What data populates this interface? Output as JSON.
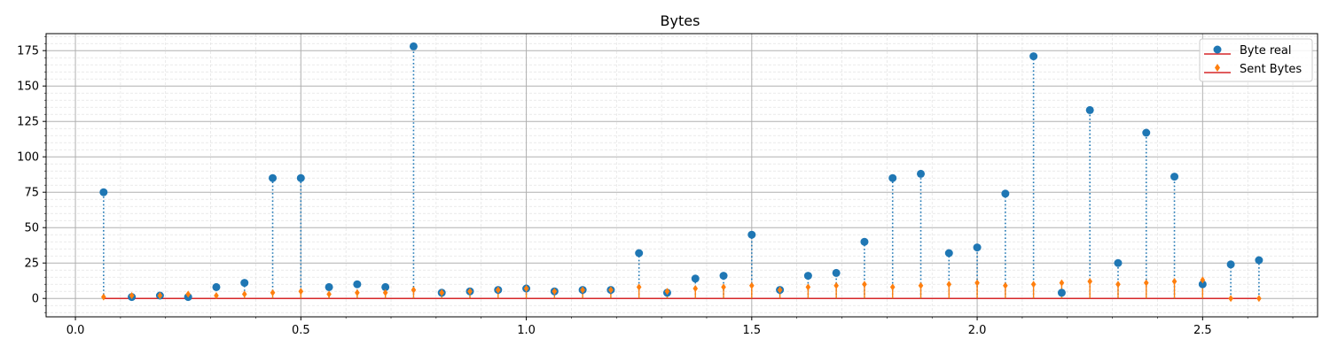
{
  "chart_data": {
    "type": "stem",
    "title": "Bytes",
    "xlabel": "",
    "ylabel": "",
    "xlim": [
      -0.065,
      2.755
    ],
    "ylim": [
      -13,
      187
    ],
    "xticks": [
      0.0,
      0.5,
      1.0,
      1.5,
      2.0,
      2.5
    ],
    "xtick_labels": [
      "0.0",
      "0.5",
      "1.0",
      "1.5",
      "2.0",
      "2.5"
    ],
    "yticks": [
      0,
      25,
      50,
      75,
      100,
      125,
      150,
      175
    ],
    "ytick_labels": [
      "0",
      "25",
      "50",
      "75",
      "100",
      "125",
      "150",
      "175"
    ],
    "grid": {
      "major": true,
      "minor": true
    },
    "legend_position": "top-right",
    "baseline_color": "#d62728",
    "x": [
      0.0625,
      0.125,
      0.1875,
      0.25,
      0.3125,
      0.375,
      0.4375,
      0.5,
      0.5625,
      0.625,
      0.6875,
      0.75,
      0.8125,
      0.875,
      0.9375,
      1.0,
      1.0625,
      1.125,
      1.1875,
      1.25,
      1.3125,
      1.375,
      1.4375,
      1.5,
      1.5625,
      1.625,
      1.6875,
      1.75,
      1.8125,
      1.875,
      1.9375,
      2.0,
      2.0625,
      2.125,
      2.1875,
      2.25,
      2.3125,
      2.375,
      2.4375,
      2.5,
      2.5625,
      2.625
    ],
    "series": [
      {
        "name": "Byte real",
        "color": "#1f77b4",
        "marker": "circle",
        "values": [
          75,
          1,
          2,
          1,
          8,
          11,
          85,
          85,
          8,
          10,
          8,
          178,
          4,
          5,
          6,
          7,
          5,
          6,
          6,
          32,
          4,
          14,
          16,
          45,
          6,
          16,
          18,
          40,
          85,
          88,
          32,
          36,
          74,
          171,
          4,
          133,
          25,
          117,
          86,
          10,
          24,
          27
        ]
      },
      {
        "name": "Sent Bytes",
        "color": "#ff7f0e",
        "marker": "diamond",
        "values": [
          1,
          2,
          2,
          3,
          2,
          3,
          4,
          5,
          3,
          4,
          4,
          6,
          4,
          5,
          6,
          7,
          5,
          6,
          6,
          8,
          5,
          7,
          8,
          9,
          6,
          8,
          9,
          10,
          8,
          9,
          10,
          11,
          9,
          10,
          11,
          12,
          10,
          11,
          12,
          13,
          0,
          0
        ]
      }
    ]
  }
}
